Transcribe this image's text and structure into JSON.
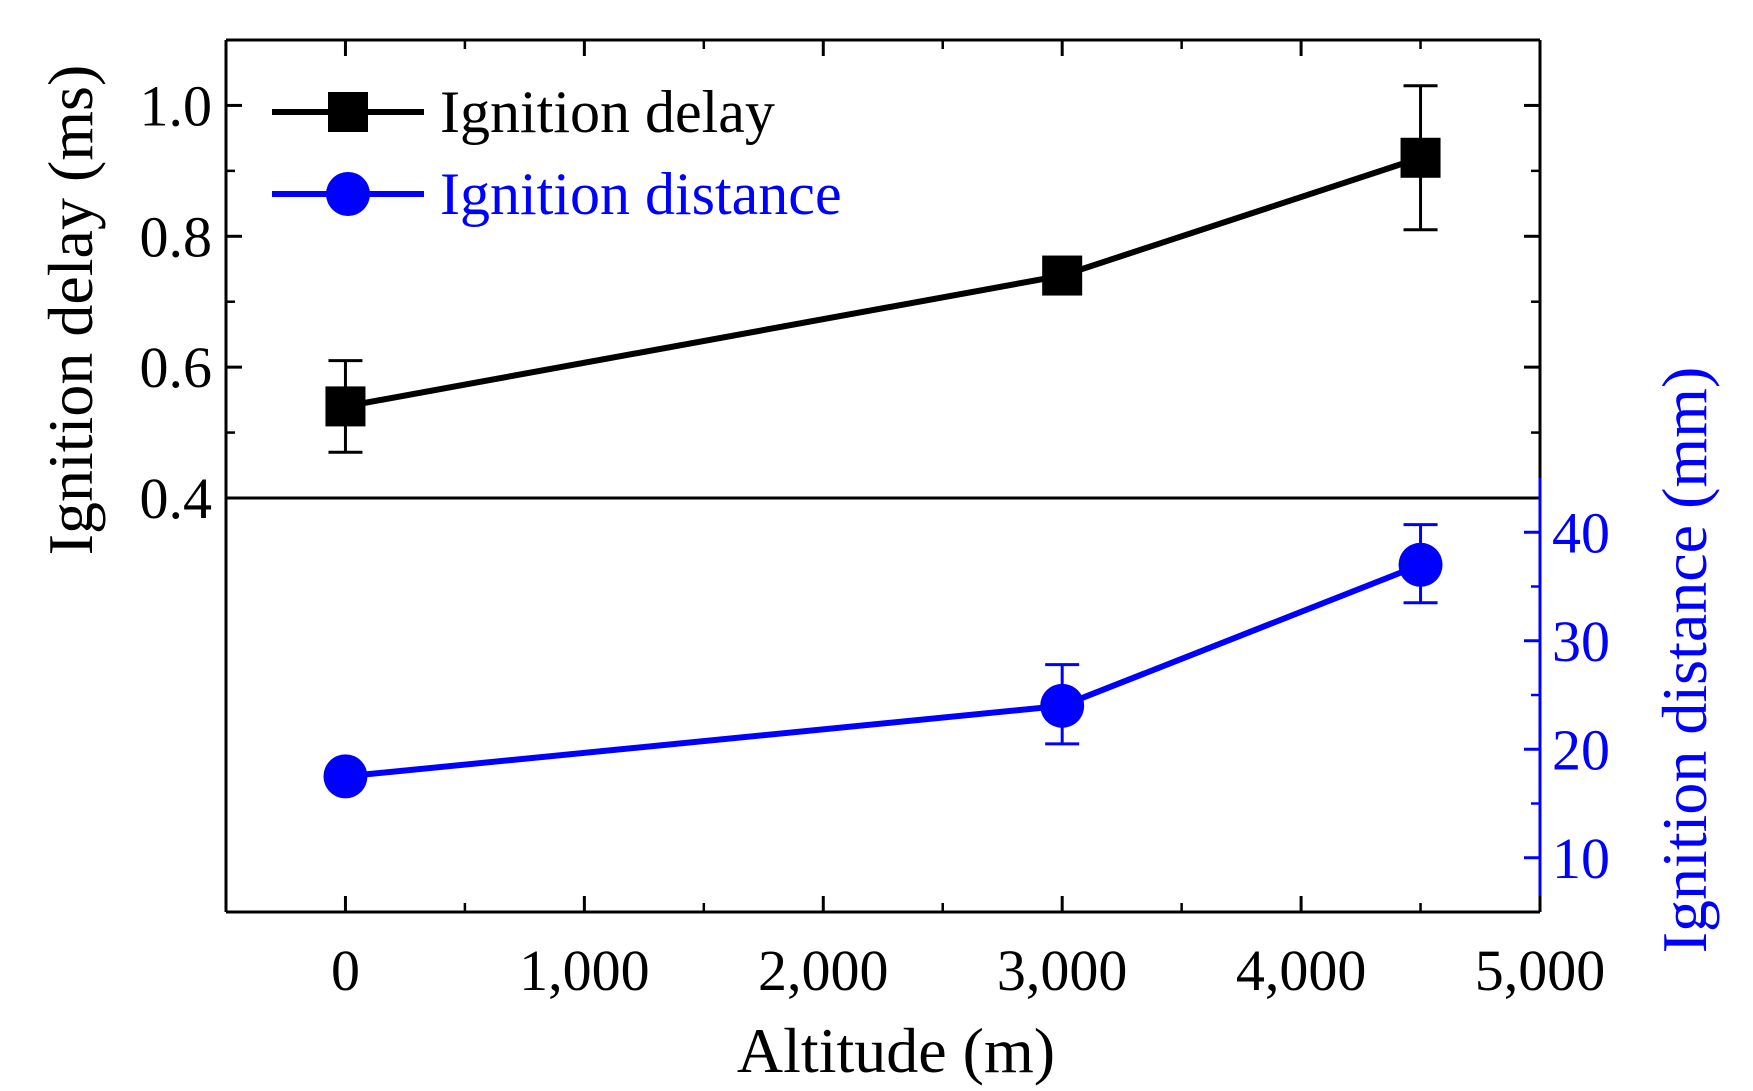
{
  "chart_data": {
    "type": "line",
    "x_axis": {
      "label": "Altitude (m)",
      "range": [
        -500,
        5000
      ],
      "ticks": [
        0,
        1000,
        2000,
        3000,
        4000,
        5000
      ],
      "tick_labels": [
        "0",
        "1,000",
        "2,000",
        "3,000",
        "4,000",
        "5,000"
      ],
      "minor_ticks": [
        -500,
        500,
        1500,
        2500,
        3500,
        4500
      ]
    },
    "y_axis_left": {
      "label": "Ignition delay (ms)",
      "range": [
        0.4,
        1.1
      ],
      "ticks": [
        0.4,
        0.6,
        0.8,
        1.0
      ],
      "tick_labels": [
        "0.4",
        "0.6",
        "0.8",
        "1.0"
      ],
      "minor_ticks": [
        0.5,
        0.7,
        0.9
      ],
      "color": "#000000"
    },
    "y_axis_right": {
      "label": "Ignition distance (mm)",
      "range": [
        5,
        45
      ],
      "ticks": [
        10,
        20,
        30,
        40
      ],
      "tick_labels": [
        "10",
        "20",
        "30",
        "40"
      ],
      "minor_ticks": [
        15,
        25,
        35
      ],
      "color": "#0000ff"
    },
    "series": [
      {
        "name": "Ignition delay",
        "axis": "left",
        "color": "#000000",
        "marker": "square",
        "x": [
          0,
          3000,
          4500
        ],
        "y": [
          0.54,
          0.74,
          0.92
        ],
        "err_low": [
          0.47,
          0.72,
          0.81
        ],
        "err_high": [
          0.61,
          0.76,
          1.03
        ]
      },
      {
        "name": "Ignition distance",
        "axis": "right",
        "color": "#0000ff",
        "marker": "circle",
        "x": [
          0,
          3000,
          4500
        ],
        "y": [
          17.5,
          24,
          37
        ],
        "err_low": [
          17.5,
          20.5,
          33.5
        ],
        "err_high": [
          17.5,
          27.8,
          40.7
        ]
      }
    ],
    "legend": {
      "placement": "top-left",
      "entries": [
        "Ignition delay",
        "Ignition distance"
      ]
    }
  }
}
